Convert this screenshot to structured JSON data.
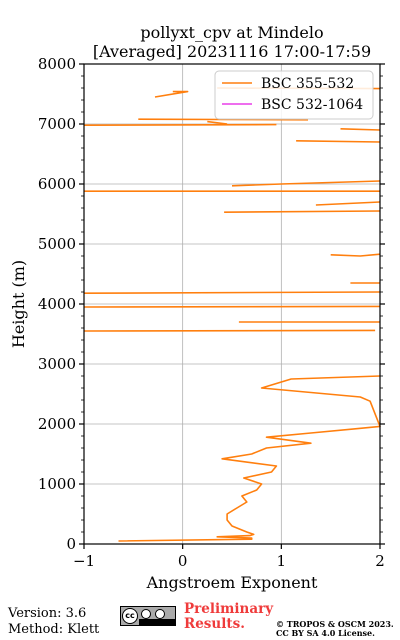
{
  "chart_data": {
    "type": "line",
    "title": "pollyxt_cpv at Mindelo",
    "subtitle": "[Averaged] 20231116 17:00-17:59",
    "xlabel": "Angstroem Exponent",
    "ylabel": "Height (m)",
    "xlim": [
      -1,
      2
    ],
    "ylim": [
      0,
      8000
    ],
    "xticks": [
      "-1",
      "0",
      "1",
      "2"
    ],
    "yticks": [
      "0",
      "1000",
      "2000",
      "3000",
      "4000",
      "5000",
      "6000",
      "7000",
      "8000"
    ],
    "grid": true,
    "legend_position": "top-right",
    "series": [
      {
        "name": "BSC 355-532",
        "color": "#ff7f0e",
        "points": [
          [
            -0.65,
            50
          ],
          [
            0.7,
            80
          ],
          [
            0.7,
            100
          ],
          [
            0.35,
            120
          ],
          [
            0.68,
            140
          ],
          [
            0.72,
            160
          ],
          [
            0.65,
            200
          ],
          [
            0.5,
            300
          ],
          [
            0.45,
            400
          ],
          [
            0.45,
            500
          ],
          [
            0.55,
            600
          ],
          [
            0.65,
            700
          ],
          [
            0.6,
            800
          ],
          [
            0.75,
            900
          ],
          [
            0.8,
            1000
          ],
          [
            0.62,
            1100
          ],
          [
            0.9,
            1200
          ],
          [
            0.95,
            1300
          ],
          [
            0.4,
            1420
          ],
          [
            0.7,
            1500
          ],
          [
            0.85,
            1600
          ],
          [
            1.3,
            1680
          ],
          [
            0.85,
            1780
          ],
          [
            1.3,
            1850
          ],
          [
            1.75,
            1920
          ],
          [
            2.0,
            1960
          ],
          [
            1.9,
            2380
          ],
          [
            1.8,
            2450
          ],
          [
            0.8,
            2600
          ],
          [
            1.1,
            2750
          ],
          [
            2.0,
            2800
          ],
          [
            null,
            null
          ],
          [
            -1,
            3550
          ],
          [
            1.95,
            3560
          ],
          [
            null,
            null
          ],
          [
            0.57,
            3700
          ],
          [
            2.0,
            3700
          ],
          [
            null,
            null
          ],
          [
            -1,
            3950
          ],
          [
            2.0,
            3960
          ],
          [
            null,
            null
          ],
          [
            -1,
            4180
          ],
          [
            2.0,
            4200
          ],
          [
            null,
            null
          ],
          [
            1.7,
            4350
          ],
          [
            2.0,
            4350
          ],
          [
            null,
            null
          ],
          [
            1.5,
            4820
          ],
          [
            1.8,
            4800
          ],
          [
            2.0,
            4830
          ],
          [
            null,
            null
          ],
          [
            0.42,
            5530
          ],
          [
            2.0,
            5550
          ],
          [
            null,
            null
          ],
          [
            1.35,
            5650
          ],
          [
            2.0,
            5700
          ],
          [
            null,
            null
          ],
          [
            -1,
            5880
          ],
          [
            2.0,
            5880
          ],
          [
            null,
            null
          ],
          [
            0.5,
            5970
          ],
          [
            1.0,
            6000
          ],
          [
            2.0,
            6050
          ],
          [
            null,
            null
          ],
          [
            1.15,
            6720
          ],
          [
            2.0,
            6700
          ],
          [
            null,
            null
          ],
          [
            1.6,
            6920
          ],
          [
            2.0,
            6900
          ],
          [
            null,
            null
          ],
          [
            -1,
            6980
          ],
          [
            0.95,
            6990
          ],
          [
            null,
            null
          ],
          [
            0.25,
            7040
          ],
          [
            0.45,
            7000
          ],
          [
            null,
            null
          ],
          [
            -0.45,
            7080
          ],
          [
            1.27,
            7070
          ],
          [
            null,
            null
          ],
          [
            -0.28,
            7450
          ],
          [
            0.05,
            7540
          ],
          [
            -0.1,
            7540
          ],
          [
            null,
            null
          ],
          [
            0.35,
            7600
          ],
          [
            2.0,
            7590
          ]
        ]
      },
      {
        "name": "BSC 532-1064",
        "color": "#e83ee8",
        "points": []
      }
    ]
  },
  "footer": {
    "version": "Version: 3.6",
    "method": "Method: Klett",
    "preliminary": "Preliminary\nResults.",
    "preliminary_color": "#ef3b3b",
    "copyright_line1": "© TROPOS & OSCM 2023.",
    "copyright_line2": "CC BY SA 4.0 License.",
    "license_icon": "cc-by-sa-icon"
  }
}
